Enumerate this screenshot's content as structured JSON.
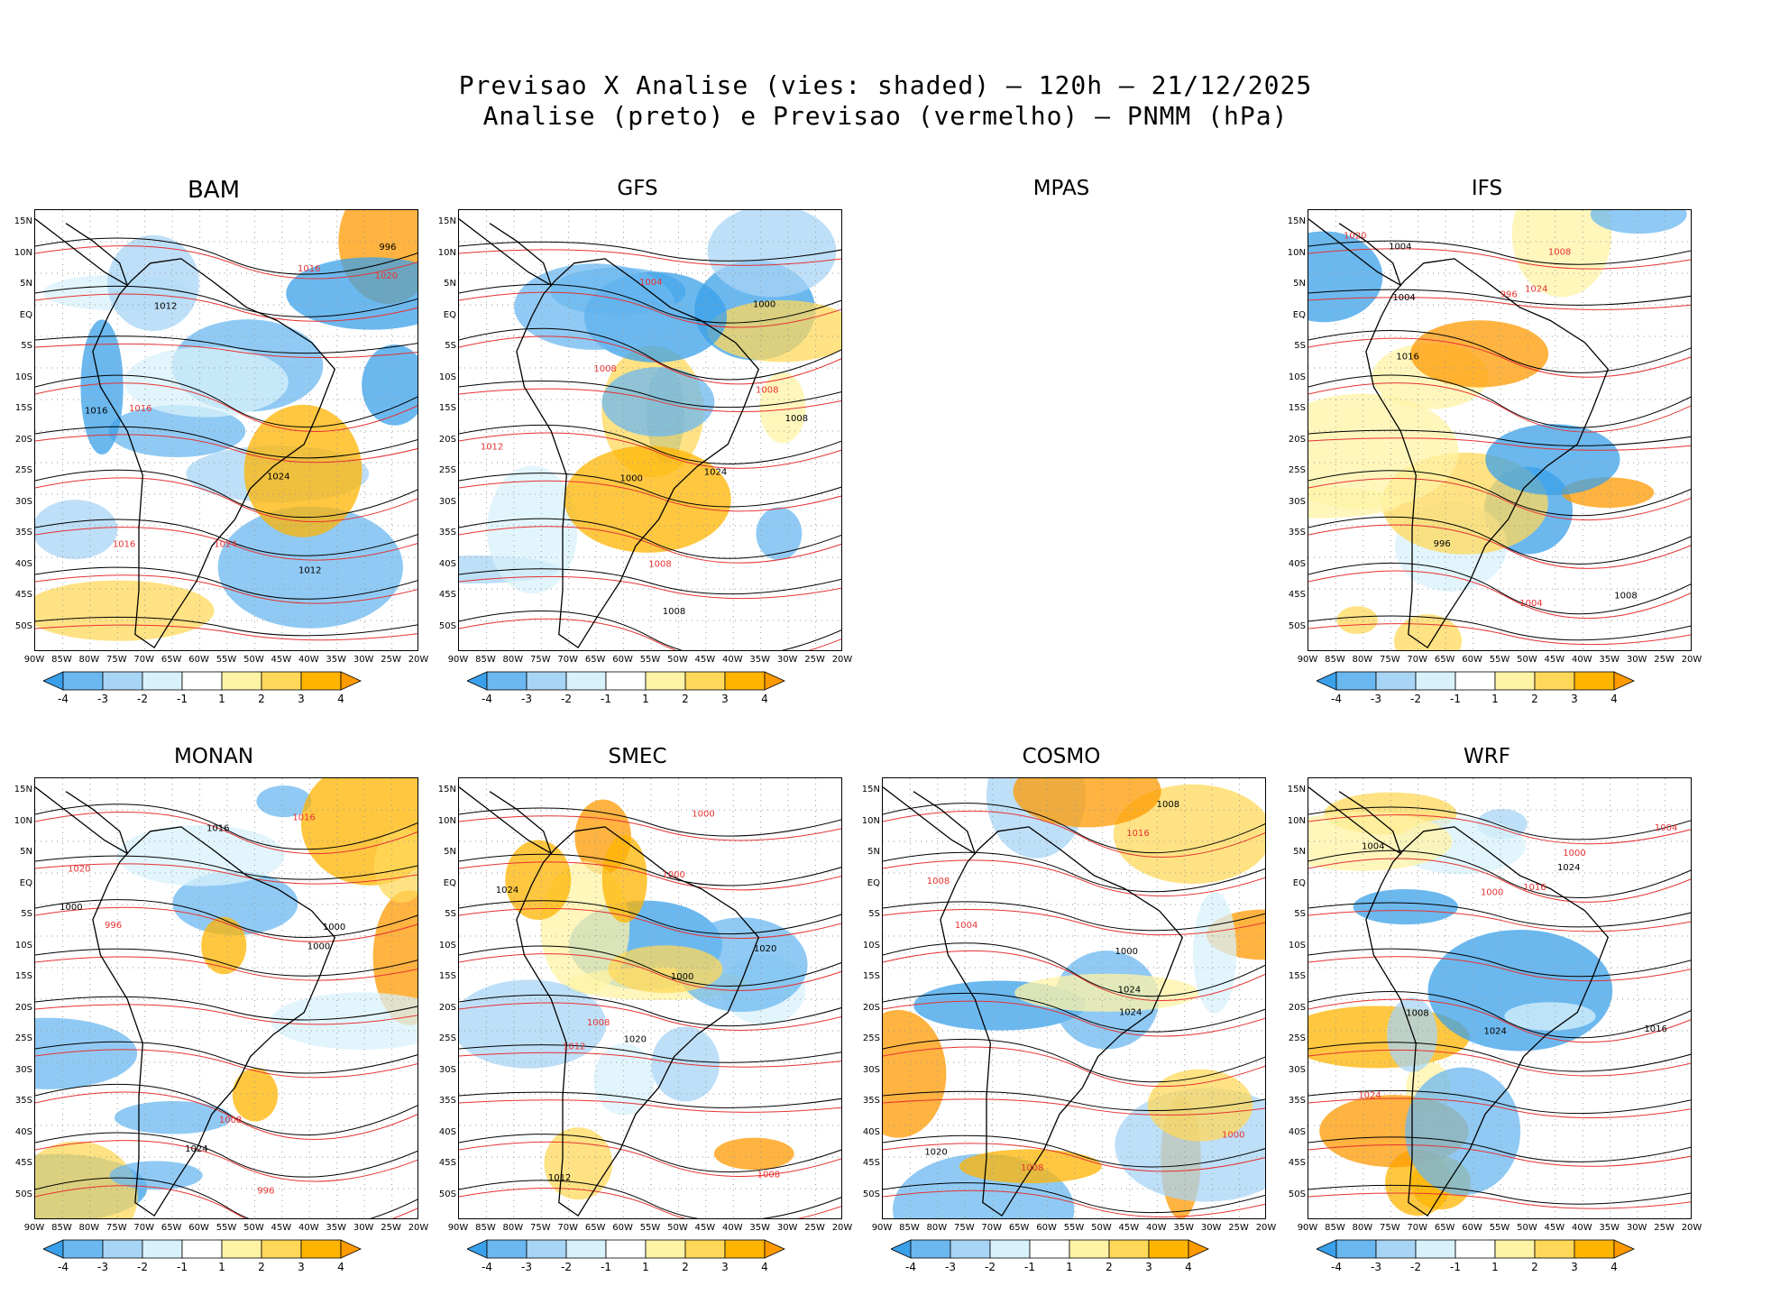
{
  "title": {
    "line1": "Previsao X Analise (vies: shaded) – 120h – 21/12/2025",
    "line2": "Analise (preto) e Previsao (vermelho) – PNMM (hPa)"
  },
  "panels": [
    {
      "name": "BAM",
      "has_map": true
    },
    {
      "name": "GFS",
      "has_map": true
    },
    {
      "name": "MPAS",
      "has_map": false
    },
    {
      "name": "IFS",
      "has_map": true
    },
    {
      "name": "MONAN",
      "has_map": true
    },
    {
      "name": "SMEC",
      "has_map": true
    },
    {
      "name": "COSMO",
      "has_map": true
    },
    {
      "name": "WRF",
      "has_map": true
    }
  ],
  "axes": {
    "lat_labels": [
      "15N",
      "10N",
      "5N",
      "EQ",
      "5S",
      "10S",
      "15S",
      "20S",
      "25S",
      "30S",
      "35S",
      "40S",
      "45S",
      "50S"
    ],
    "lon_labels": [
      "90W",
      "85W",
      "80W",
      "75W",
      "70W",
      "65W",
      "60W",
      "55W",
      "50W",
      "45W",
      "40W",
      "35W",
      "30W",
      "25W",
      "20W"
    ]
  },
  "colorbar": {
    "labels": [
      "-4",
      "-3",
      "-2",
      "-1",
      "1",
      "2",
      "3",
      "4"
    ],
    "colors": [
      "#3aa0ea",
      "#6bb8f0",
      "#a8d4f6",
      "#d8f2fb",
      "#ffffff",
      "#fff3a6",
      "#ffd85a",
      "#ffb400",
      "#ff9a00"
    ]
  },
  "contour_labels": {
    "analysis_color": "#000000",
    "forecast_color": "#e63232",
    "values": [
      "1016",
      "1012",
      "1008",
      "1004",
      "1000",
      "1020",
      "1024",
      "996"
    ]
  }
}
